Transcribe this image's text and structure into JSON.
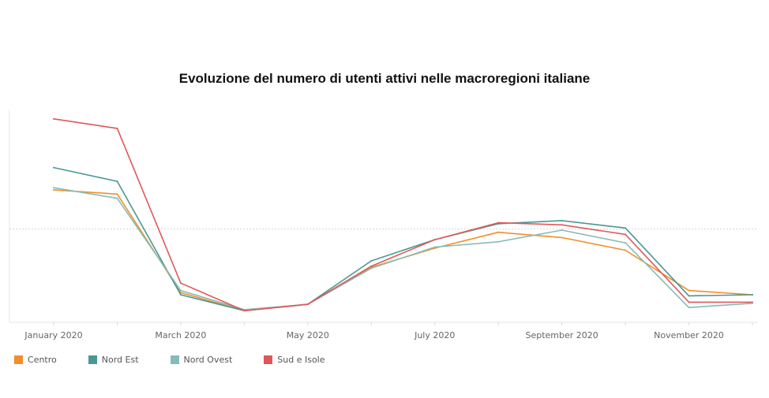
{
  "chart_data": {
    "type": "line",
    "title": "Evoluzione del numero di utenti attivi nelle macroregioni italiane",
    "x": [
      "2020-01",
      "2020-02",
      "2020-03",
      "2020-04",
      "2020-05",
      "2020-06",
      "2020-07",
      "2020-08",
      "2020-09",
      "2020-10",
      "2020-11",
      "2020-12"
    ],
    "x_tick_labels": [
      "January 2020",
      "",
      "March 2020",
      "",
      "May 2020",
      "",
      "July 2020",
      "",
      "September 2020",
      "",
      "November 2020",
      ""
    ],
    "ylim": [
      0,
      100
    ],
    "reference_line": 44,
    "grid": false,
    "legend_position": "bottom-left",
    "series": [
      {
        "name": "Centro",
        "color": "#f28e2b",
        "values": [
          62.5,
          60.5,
          14,
          5.5,
          8.5,
          26,
          35,
          42.5,
          40,
          34,
          15,
          13
        ]
      },
      {
        "name": "Nord Est",
        "color": "#499894",
        "values": [
          73,
          66.5,
          13,
          5.5,
          8.5,
          29,
          39,
          46.5,
          48,
          44.5,
          12.5,
          13
        ]
      },
      {
        "name": "Nord Ovest",
        "color": "#86bcb6",
        "values": [
          63.5,
          58.5,
          15,
          6,
          8.5,
          25.5,
          35.5,
          38,
          43.5,
          37.5,
          7,
          9
        ]
      },
      {
        "name": "Sud e Isole",
        "color": "#e15759",
        "values": [
          96,
          91.5,
          18.5,
          5.5,
          8.5,
          26.5,
          39,
          47,
          46,
          41.5,
          9.5,
          9.5
        ]
      }
    ]
  }
}
